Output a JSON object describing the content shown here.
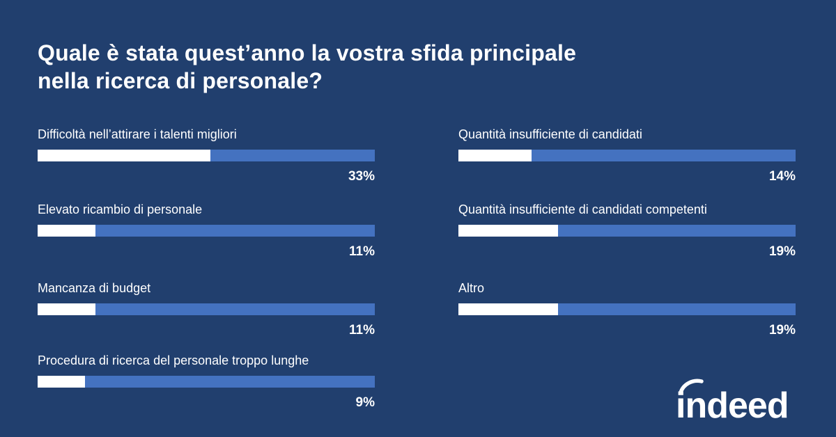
{
  "title_lines": [
    "Quale è stata quest’anno la vostra sfida principale",
    "nella ricerca di personale?"
  ],
  "chart_data": {
    "type": "bar",
    "categories": [
      "Difficoltà nell’attirare i talenti migliori",
      "Elevato ricambio di personale",
      "Mancanza di budget",
      "Procedura di ricerca del personale troppo lunghe",
      "Quantità insufficiente di candidati",
      "Quantità insufficiente di candidati competenti",
      "Altro"
    ],
    "values": [
      33,
      11,
      11,
      9,
      14,
      19,
      19
    ],
    "value_labels": [
      "33%",
      "11%",
      "11%",
      "9%",
      "14%",
      "19%",
      "19%"
    ],
    "ylim": [
      0,
      100
    ],
    "colors": {
      "background": "#213f6e",
      "track": "#4472c0",
      "fill": "#ffffff"
    }
  },
  "logo": {
    "text": "indeed",
    "icon": "indeed-logo-icon"
  }
}
